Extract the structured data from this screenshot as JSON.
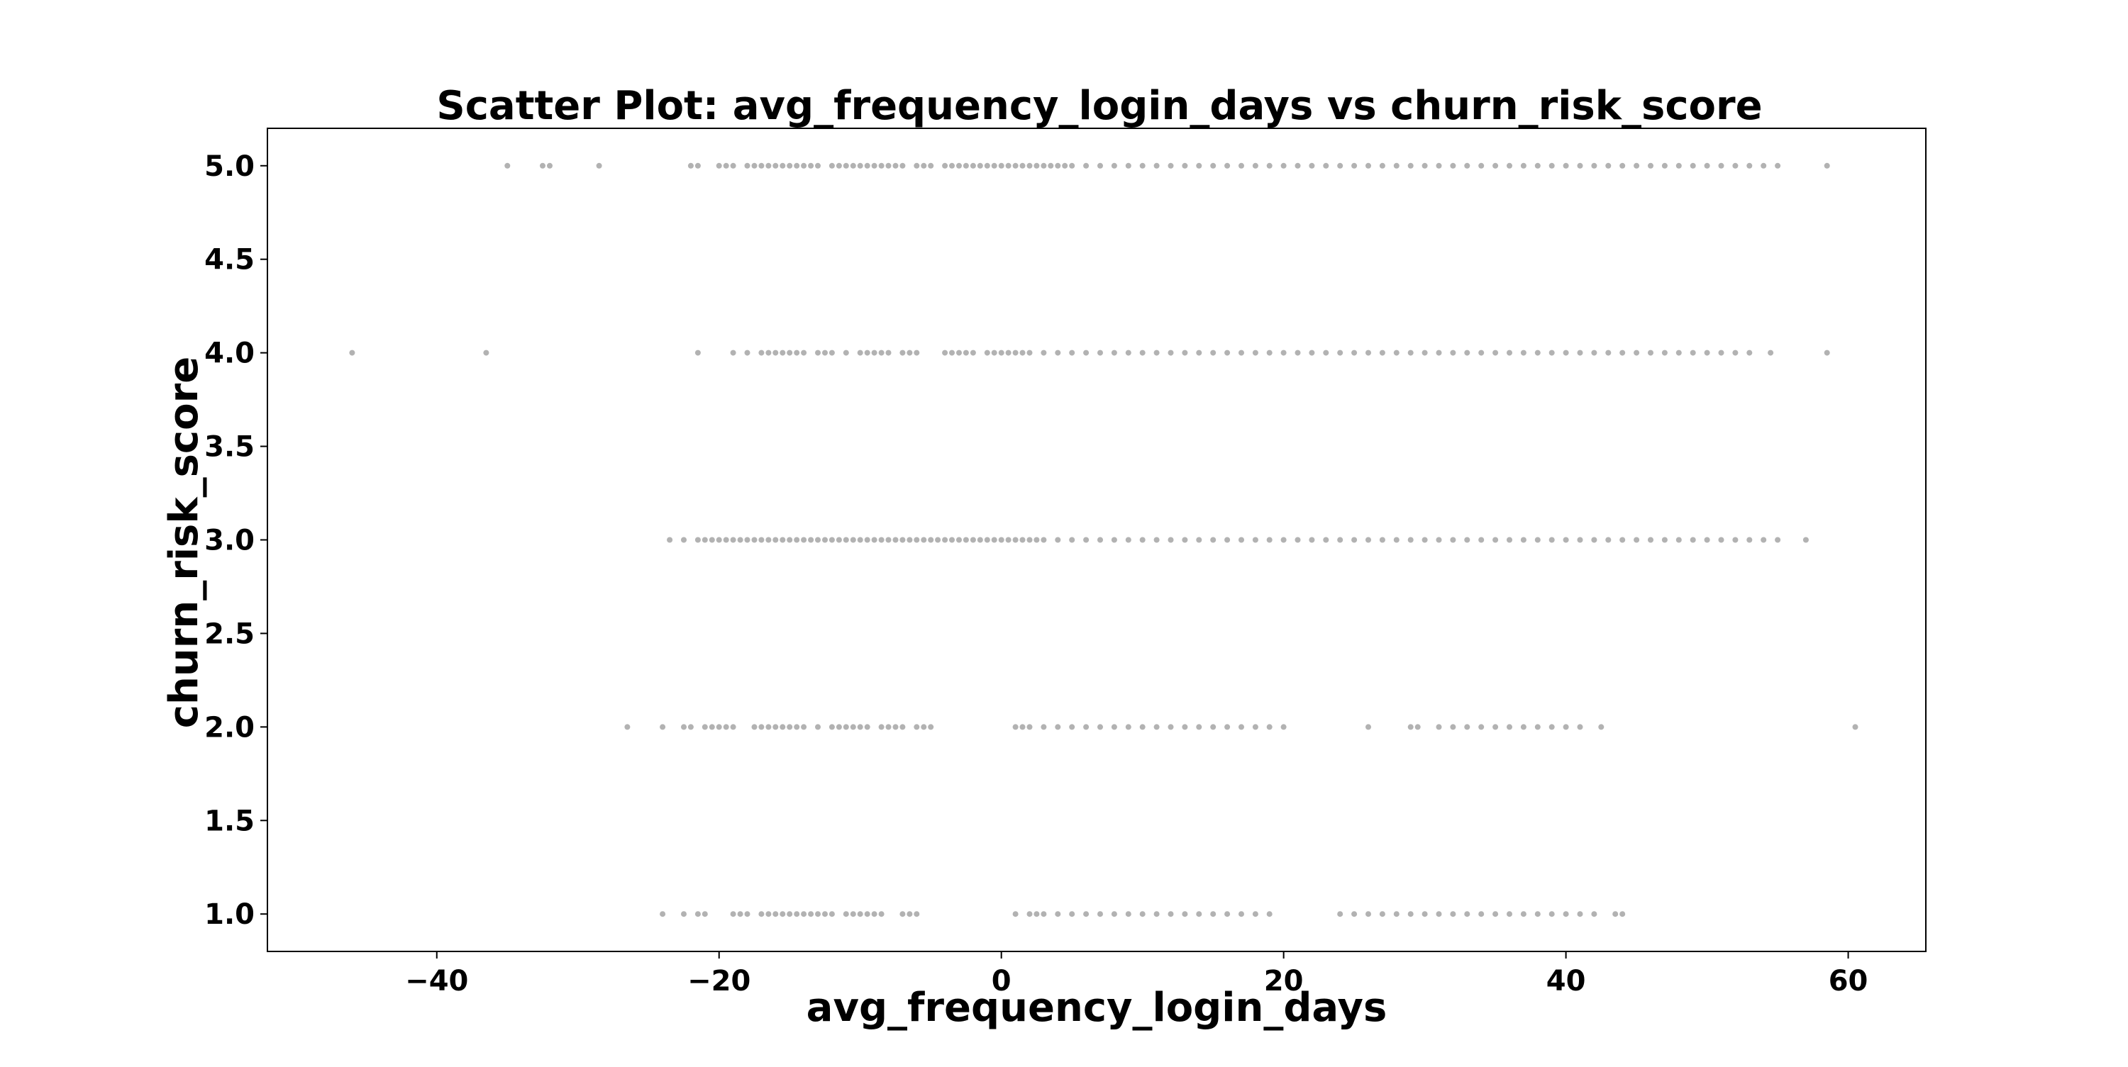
{
  "chart_data": {
    "type": "scatter",
    "title": "Scatter Plot: avg_frequency_login_days vs churn_risk_score",
    "xlabel": "avg_frequency_login_days",
    "ylabel": "churn_risk_score",
    "xlim": [
      -52,
      65.5
    ],
    "ylim": [
      0.8,
      5.2
    ],
    "xticks": [
      -40,
      -20,
      0,
      20,
      40,
      60
    ],
    "xtick_labels": [
      "−40",
      "−20",
      "0",
      "20",
      "40",
      "60"
    ],
    "yticks": [
      1.0,
      1.5,
      2.0,
      2.5,
      3.0,
      3.5,
      4.0,
      4.5,
      5.0
    ],
    "ytick_labels": [
      "1.0",
      "1.5",
      "2.0",
      "2.5",
      "3.0",
      "3.5",
      "4.0",
      "4.5",
      "5.0"
    ],
    "grid": false,
    "legend": "none",
    "marker_color": "#666666",
    "marker_opacity": 0.5,
    "series": [
      {
        "y": 5,
        "x": [
          -35,
          -32.5,
          -32,
          -28.5,
          -22,
          -21.5,
          -20,
          -19.5,
          -19,
          -18,
          -17.5,
          -17,
          -16.5,
          -16,
          -15.5,
          -15,
          -14.5,
          -14,
          -13.5,
          -13,
          -12,
          -11.5,
          -11,
          -10.5,
          -10,
          -9.5,
          -9,
          -8.5,
          -8,
          -7.5,
          -7,
          -6,
          -5.5,
          -5,
          -4,
          -3.5,
          -3,
          -2.5,
          -2,
          -1.5,
          -1,
          -0.5,
          0,
          0.5,
          1,
          1.5,
          2,
          2.5,
          3,
          3.5,
          4,
          4.5,
          5,
          6,
          7,
          8,
          9,
          10,
          11,
          12,
          13,
          14,
          15,
          16,
          17,
          18,
          19,
          20,
          21,
          22,
          23,
          24,
          25,
          26,
          27,
          28,
          29,
          30,
          31,
          32,
          33,
          34,
          35,
          36,
          37,
          38,
          39,
          40,
          41,
          42,
          43,
          44,
          45,
          46,
          47,
          48,
          49,
          50,
          51,
          52,
          53,
          54,
          55,
          58.5
        ]
      },
      {
        "y": 4,
        "x": [
          -46,
          -36.5,
          -21.5,
          -19,
          -18,
          -17,
          -16.5,
          -16,
          -15.5,
          -15,
          -14.5,
          -14,
          -13,
          -12.5,
          -12,
          -11,
          -10,
          -9.5,
          -9,
          -8.5,
          -8,
          -7,
          -6.5,
          -6,
          -4,
          -3.5,
          -3,
          -2.5,
          -2,
          -1,
          -0.5,
          0,
          0.5,
          1,
          1.5,
          2,
          3,
          4,
          5,
          6,
          7,
          8,
          9,
          10,
          11,
          12,
          13,
          14,
          15,
          16,
          17,
          18,
          19,
          20,
          21,
          22,
          23,
          24,
          25,
          26,
          27,
          28,
          29,
          30,
          31,
          32,
          33,
          34,
          35,
          36,
          37,
          38,
          39,
          40,
          41,
          42,
          43,
          44,
          45,
          46,
          47,
          48,
          49,
          50,
          51,
          52,
          53,
          54.5,
          58.5
        ]
      },
      {
        "y": 3,
        "x": [
          -23.5,
          -22.5,
          -21.5,
          -21,
          -20.5,
          -20,
          -19.5,
          -19,
          -18.5,
          -18,
          -17.5,
          -17,
          -16.5,
          -16,
          -15.5,
          -15,
          -14.5,
          -14,
          -13.5,
          -13,
          -12.5,
          -12,
          -11.5,
          -11,
          -10.5,
          -10,
          -9.5,
          -9,
          -8.5,
          -8,
          -7.5,
          -7,
          -6.5,
          -6,
          -5.5,
          -5,
          -4.5,
          -4,
          -3.5,
          -3,
          -2.5,
          -2,
          -1.5,
          -1,
          -0.5,
          0,
          0.5,
          1,
          1.5,
          2,
          2.5,
          3,
          4,
          5,
          6,
          7,
          8,
          9,
          10,
          11,
          12,
          13,
          14,
          15,
          16,
          17,
          18,
          19,
          20,
          21,
          22,
          23,
          24,
          25,
          26,
          27,
          28,
          29,
          30,
          31,
          32,
          33,
          34,
          35,
          36,
          37,
          38,
          39,
          40,
          41,
          42,
          43,
          44,
          45,
          46,
          47,
          48,
          49,
          50,
          51,
          52,
          53,
          54,
          55,
          57
        ]
      },
      {
        "y": 2,
        "x": [
          -26.5,
          -24,
          -22.5,
          -22,
          -21,
          -20.5,
          -20,
          -19.5,
          -19,
          -17.5,
          -17,
          -16.5,
          -16,
          -15.5,
          -15,
          -14.5,
          -14,
          -13,
          -12,
          -11.5,
          -11,
          -10.5,
          -10,
          -9.5,
          -8.5,
          -8,
          -7.5,
          -7,
          -6,
          -5.5,
          -5,
          1,
          1.5,
          2,
          3,
          4,
          5,
          6,
          7,
          8,
          9,
          10,
          11,
          12,
          13,
          14,
          15,
          16,
          17,
          18,
          19,
          20,
          26,
          29,
          29.5,
          31,
          32,
          33,
          34,
          35,
          36,
          37,
          38,
          39,
          40,
          41,
          42.5,
          60.5
        ]
      },
      {
        "y": 1,
        "x": [
          -24,
          -22.5,
          -21.5,
          -21,
          -19,
          -18.5,
          -18,
          -17,
          -16.5,
          -16,
          -15.5,
          -15,
          -14.5,
          -14,
          -13.5,
          -13,
          -12.5,
          -12,
          -11,
          -10.5,
          -10,
          -9.5,
          -9,
          -8.5,
          -7,
          -6.5,
          -6,
          1,
          2,
          2.5,
          3,
          4,
          5,
          6,
          7,
          8,
          9,
          10,
          11,
          12,
          13,
          14,
          15,
          16,
          17,
          18,
          19,
          24,
          25,
          26,
          27,
          28,
          29,
          30,
          31,
          32,
          33,
          34,
          35,
          36,
          37,
          38,
          39,
          40,
          41,
          42,
          43.5,
          44
        ]
      }
    ]
  }
}
